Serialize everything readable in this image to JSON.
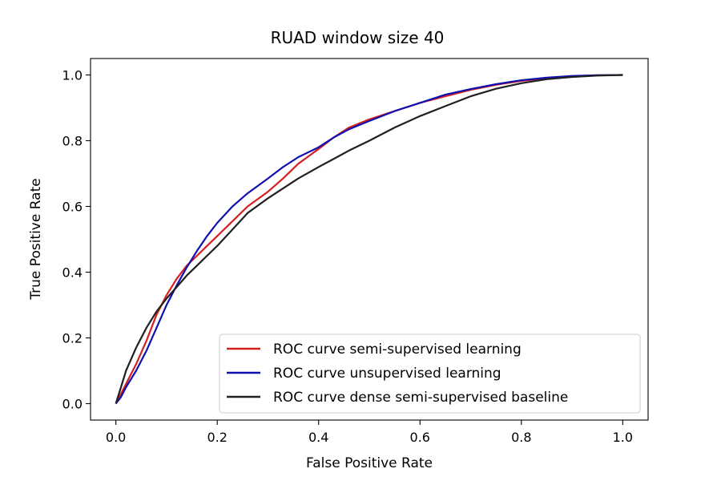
{
  "chart_data": {
    "type": "line",
    "title": "RUAD window size 40",
    "xlabel": "False Positive Rate",
    "ylabel": "True Positive Rate",
    "xlim": [
      -0.05,
      1.05
    ],
    "ylim": [
      -0.05,
      1.05
    ],
    "xticks": [
      0.0,
      0.2,
      0.4,
      0.6,
      0.8,
      1.0
    ],
    "yticks": [
      0.0,
      0.2,
      0.4,
      0.6,
      0.8,
      1.0
    ],
    "xtick_labels": [
      "0.0",
      "0.2",
      "0.4",
      "0.6",
      "0.8",
      "1.0"
    ],
    "ytick_labels": [
      "0.0",
      "0.2",
      "0.4",
      "0.6",
      "0.8",
      "1.0"
    ],
    "grid": false,
    "legend_position": "lower-right",
    "series": [
      {
        "name": "ROC curve semi-supervised learning",
        "color": "#d62020",
        "x": [
          0,
          0.01,
          0.02,
          0.04,
          0.06,
          0.08,
          0.1,
          0.12,
          0.14,
          0.16,
          0.18,
          0.2,
          0.23,
          0.26,
          0.3,
          0.33,
          0.36,
          0.4,
          0.43,
          0.46,
          0.5,
          0.55,
          0.6,
          0.65,
          0.7,
          0.75,
          0.8,
          0.85,
          0.9,
          0.95,
          1.0
        ],
        "y": [
          0,
          0.03,
          0.06,
          0.12,
          0.19,
          0.27,
          0.33,
          0.38,
          0.42,
          0.45,
          0.48,
          0.51,
          0.555,
          0.6,
          0.645,
          0.685,
          0.73,
          0.775,
          0.81,
          0.84,
          0.865,
          0.89,
          0.915,
          0.935,
          0.955,
          0.97,
          0.982,
          0.99,
          0.996,
          0.999,
          1.0
        ]
      },
      {
        "name": "ROC curve unsupervised learning",
        "color": "#1010b0",
        "x": [
          0,
          0.01,
          0.02,
          0.04,
          0.06,
          0.08,
          0.1,
          0.12,
          0.14,
          0.16,
          0.18,
          0.2,
          0.23,
          0.26,
          0.3,
          0.33,
          0.36,
          0.4,
          0.43,
          0.46,
          0.5,
          0.55,
          0.6,
          0.65,
          0.7,
          0.75,
          0.8,
          0.85,
          0.9,
          0.95,
          1.0
        ],
        "y": [
          0,
          0.02,
          0.05,
          0.1,
          0.16,
          0.23,
          0.3,
          0.36,
          0.415,
          0.465,
          0.51,
          0.55,
          0.6,
          0.64,
          0.685,
          0.72,
          0.75,
          0.78,
          0.81,
          0.835,
          0.86,
          0.89,
          0.915,
          0.94,
          0.957,
          0.972,
          0.984,
          0.992,
          0.997,
          0.999,
          1.0
        ]
      },
      {
        "name": "ROC curve dense semi-supervised baseline",
        "color": "#202020",
        "x": [
          0,
          0.01,
          0.02,
          0.04,
          0.06,
          0.08,
          0.1,
          0.12,
          0.14,
          0.16,
          0.18,
          0.2,
          0.23,
          0.26,
          0.3,
          0.33,
          0.36,
          0.4,
          0.43,
          0.46,
          0.5,
          0.55,
          0.6,
          0.65,
          0.7,
          0.75,
          0.8,
          0.85,
          0.9,
          0.95,
          1.0
        ],
        "y": [
          0,
          0.05,
          0.1,
          0.17,
          0.23,
          0.28,
          0.32,
          0.355,
          0.39,
          0.42,
          0.45,
          0.48,
          0.53,
          0.58,
          0.625,
          0.655,
          0.685,
          0.72,
          0.745,
          0.77,
          0.8,
          0.84,
          0.875,
          0.905,
          0.935,
          0.958,
          0.975,
          0.987,
          0.994,
          0.998,
          1.0
        ]
      }
    ]
  }
}
